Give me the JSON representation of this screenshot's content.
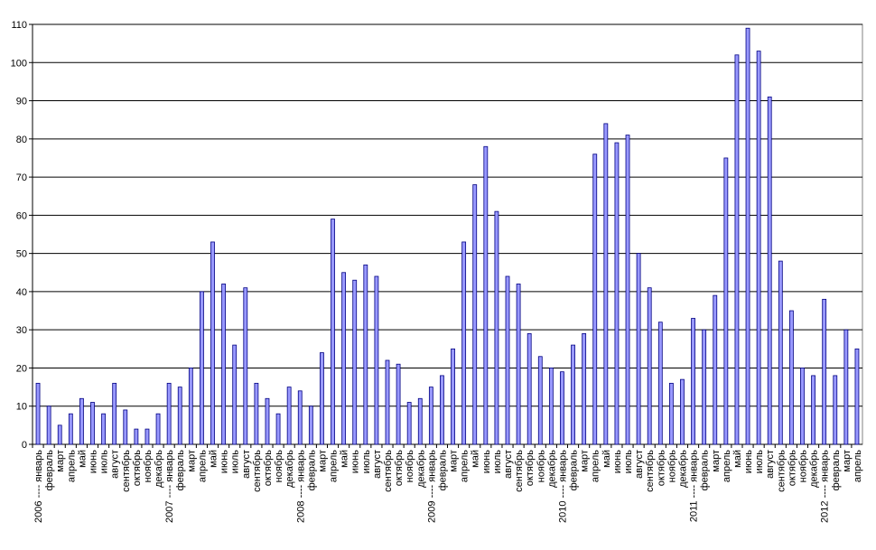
{
  "chart_data": {
    "type": "bar",
    "categories": [
      "2006 ---- январь",
      "февраль",
      "март",
      "апрель",
      "май",
      "июнь",
      "июль",
      "август",
      "сентябрь",
      "октябрь",
      "ноябрь",
      "декабрь",
      "2007 ---- январь",
      "февраль",
      "март",
      "апрель",
      "май",
      "июнь",
      "июль",
      "август",
      "сентябрь",
      "октябрь",
      "ноябрь",
      "декабрь",
      "2008 ---- январь",
      "февраль",
      "март",
      "апрель",
      "май",
      "июнь",
      "июль",
      "август",
      "сентябрь",
      "октябрь",
      "ноябрь",
      "декабрь",
      "2009 ---- январь",
      "февраль",
      "март",
      "апрель",
      "май",
      "июнь",
      "июль",
      "август",
      "сентябрь",
      "октябрь",
      "ноябрь",
      "декабрь",
      "2010 ---- январь",
      "февраль",
      "март",
      "апрель",
      "май",
      "июнь",
      "июль",
      "август",
      "сентябрь",
      "октябрь",
      "ноябрь",
      "декабрь",
      "2011 ---- январь",
      "февраль",
      "март",
      "апрель",
      "май",
      "июнь",
      "июль",
      "август",
      "сентябрь",
      "октябрь",
      "ноябрь",
      "декабрь",
      "2012 ---- январь",
      "февраль",
      "март",
      "апрель"
    ],
    "values": [
      16,
      10,
      5,
      8,
      12,
      11,
      8,
      16,
      9,
      4,
      4,
      8,
      16,
      15,
      20,
      40,
      53,
      42,
      26,
      41,
      16,
      12,
      8,
      15,
      14,
      10,
      24,
      59,
      45,
      43,
      47,
      44,
      22,
      21,
      11,
      12,
      15,
      18,
      25,
      53,
      68,
      78,
      61,
      44,
      42,
      29,
      23,
      20,
      19,
      26,
      29,
      76,
      84,
      79,
      81,
      50,
      41,
      32,
      16,
      17,
      33,
      30,
      39,
      75,
      102,
      109,
      103,
      91,
      48,
      35,
      20,
      18,
      38,
      18,
      30,
      25
    ],
    "color": "#9999ff",
    "ylim": [
      0,
      110
    ],
    "yticks": [
      0,
      10,
      20,
      30,
      40,
      50,
      60,
      70,
      80,
      90,
      100,
      110
    ],
    "grid": true
  }
}
